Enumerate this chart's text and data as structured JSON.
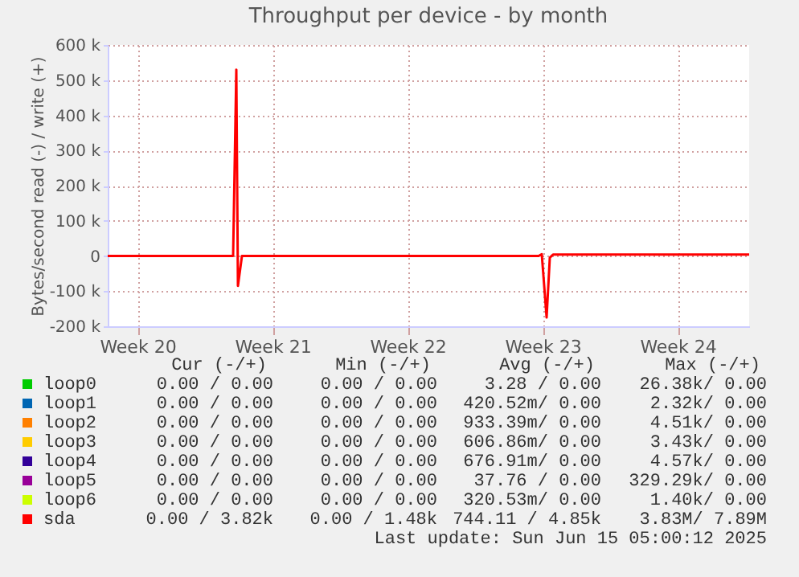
{
  "chart_data": {
    "type": "line",
    "title": "Throughput per device - by month",
    "ylabel": "Bytes/second read (-) / write (+)",
    "xlim": [
      "2025-05-12T23:00",
      "2025-06-15T05:00"
    ],
    "xticks": [
      {
        "value": "2025-05-14T12:00",
        "label": "Week 20"
      },
      {
        "value": "2025-05-21T12:00",
        "label": "Week 21"
      },
      {
        "value": "2025-05-28T12:00",
        "label": "Week 22"
      },
      {
        "value": "2025-06-04T12:00",
        "label": "Week 23"
      },
      {
        "value": "2025-06-11T12:00",
        "label": "Week 24"
      }
    ],
    "ylim": [
      -200000,
      600000
    ],
    "yticks": [
      {
        "value": -200000,
        "label": "-200 k"
      },
      {
        "value": -100000,
        "label": "-100 k"
      },
      0,
      {
        "value": 100000,
        "label": "100 k"
      },
      {
        "value": 200000,
        "label": "200 k"
      },
      {
        "value": 300000,
        "label": "300 k"
      },
      {
        "value": 400000,
        "label": "400 k"
      },
      {
        "value": 500000,
        "label": "500 k"
      },
      {
        "value": 600000,
        "label": "600 k"
      }
    ],
    "grid": true,
    "legend": "bottom",
    "line_style": "solid",
    "marker": "none",
    "series": [
      {
        "name": "loop0",
        "color": "#00cc00"
      },
      {
        "name": "loop1",
        "color": "#0066b3"
      },
      {
        "name": "loop2",
        "color": "#ff8000"
      },
      {
        "name": "loop3",
        "color": "#ffcc00"
      },
      {
        "name": "loop4",
        "color": "#330099"
      },
      {
        "name": "loop5",
        "color": "#990099"
      },
      {
        "name": "loop6",
        "color": "#ccff00"
      },
      {
        "name": "sda",
        "color": "#ff0000",
        "x": [
          "2025-05-12T23:00",
          "2025-05-19T11:00",
          "2025-05-19T15:00",
          "2025-05-19T17:00",
          "2025-05-19T22:00",
          "2025-06-04T07:00",
          "2025-06-04T11:00",
          "2025-06-04T17:00",
          "2025-06-04T21:00",
          "2025-06-05T01:00",
          "2025-06-15T05:00"
        ],
        "values": [
          0,
          0,
          530000,
          -85000,
          0,
          0,
          5000,
          -175000,
          -5000,
          4000,
          4000
        ]
      }
    ],
    "annotations": [
      "Cur (-/+)",
      "Min (-/+)",
      "Avg (-/+)",
      "Max (-/+)",
      "0.00 /  0.00",
      "0.00 /  0.00",
      "3.28 /  0.00",
      "26.38k/  0.00",
      "0.00 /  0.00",
      "0.00 /  0.00",
      "420.52m/  0.00",
      "2.32k/  0.00",
      "0.00 /  0.00",
      "0.00 /  0.00",
      "933.39m/  0.00",
      "4.51k/  0.00",
      "0.00 /  0.00",
      "0.00 /  0.00",
      "606.86m/  0.00",
      "3.43k/  0.00",
      "0.00 /  0.00",
      "0.00 /  0.00",
      "676.91m/  0.00",
      "4.57k/  0.00",
      "0.00 /  0.00",
      "0.00 /  0.00",
      "37.76 /  0.00",
      "329.29k/  0.00",
      "0.00 /  0.00",
      "0.00 /  0.00",
      "320.53m/  0.00",
      "1.40k/  0.00",
      "0.00 /  3.82k",
      "0.00 /  1.48k",
      "744.11 /  4.85k",
      "3.83M/  7.89M",
      "Last update: Sun Jun 15 05:00:12 2025"
    ]
  }
}
